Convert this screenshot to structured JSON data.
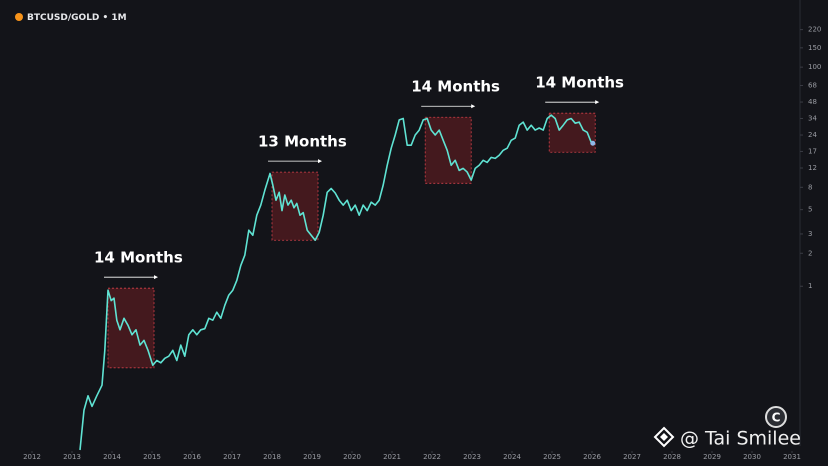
{
  "chart_data": {
    "type": "line",
    "title": "BTCUSD/GOLD • 1M",
    "watermark": "@ Tai Smilee",
    "log_y": true,
    "grid": false,
    "color": "#5fe3d3",
    "axis_side": "right",
    "xlim": [
      2011.2,
      2031.2
    ],
    "ylim": [
      0.032,
      410
    ],
    "xticks": [
      2012,
      2013,
      2014,
      2015,
      2016,
      2017,
      2018,
      2019,
      2020,
      2021,
      2022,
      2023,
      2024,
      2025,
      2026,
      2027,
      2028,
      2029,
      2030,
      2031
    ],
    "yticks": [
      220,
      150,
      100,
      68,
      48,
      34,
      24,
      17,
      12,
      8,
      5,
      3,
      2,
      1
    ],
    "x": [
      2013.2,
      2013.3,
      2013.4,
      2013.5,
      2013.62,
      2013.75,
      2013.82,
      2013.9,
      2013.98,
      2014.05,
      2014.12,
      2014.2,
      2014.3,
      2014.4,
      2014.5,
      2014.6,
      2014.7,
      2014.8,
      2014.9,
      2015.02,
      2015.12,
      2015.22,
      2015.32,
      2015.42,
      2015.52,
      2015.62,
      2015.72,
      2015.82,
      2015.92,
      2016.02,
      2016.12,
      2016.22,
      2016.32,
      2016.42,
      2016.52,
      2016.62,
      2016.72,
      2016.82,
      2016.92,
      2017.02,
      2017.12,
      2017.22,
      2017.32,
      2017.42,
      2017.52,
      2017.62,
      2017.72,
      2017.82,
      2017.95,
      2018.02,
      2018.1,
      2018.18,
      2018.25,
      2018.32,
      2018.4,
      2018.48,
      2018.55,
      2018.62,
      2018.7,
      2018.78,
      2018.88,
      2018.98,
      2019.08,
      2019.18,
      2019.28,
      2019.38,
      2019.48,
      2019.58,
      2019.68,
      2019.78,
      2019.88,
      2019.98,
      2020.08,
      2020.18,
      2020.28,
      2020.38,
      2020.48,
      2020.58,
      2020.68,
      2020.78,
      2020.88,
      2020.98,
      2021.08,
      2021.18,
      2021.28,
      2021.38,
      2021.48,
      2021.58,
      2021.68,
      2021.78,
      2021.88,
      2021.98,
      2022.08,
      2022.18,
      2022.28,
      2022.38,
      2022.48,
      2022.58,
      2022.68,
      2022.78,
      2022.88,
      2022.98,
      2023.08,
      2023.18,
      2023.28,
      2023.38,
      2023.48,
      2023.58,
      2023.68,
      2023.78,
      2023.88,
      2023.98,
      2024.08,
      2024.18,
      2024.28,
      2024.38,
      2024.48,
      2024.58,
      2024.68,
      2024.78,
      2024.88,
      2024.98,
      2025.08,
      2025.18,
      2025.28,
      2025.38,
      2025.48,
      2025.58,
      2025.68,
      2025.78,
      2025.88,
      2025.98,
      2026.02
    ],
    "values": [
      0.032,
      0.074,
      0.1,
      0.08,
      0.1,
      0.125,
      0.26,
      0.92,
      0.74,
      0.78,
      0.49,
      0.4,
      0.51,
      0.44,
      0.36,
      0.4,
      0.29,
      0.32,
      0.26,
      0.19,
      0.21,
      0.2,
      0.22,
      0.23,
      0.26,
      0.21,
      0.29,
      0.23,
      0.36,
      0.4,
      0.36,
      0.4,
      0.41,
      0.51,
      0.49,
      0.58,
      0.51,
      0.67,
      0.83,
      0.92,
      1.13,
      1.55,
      1.92,
      3.25,
      2.92,
      4.45,
      5.5,
      7.5,
      10.7,
      8.4,
      6.1,
      7.2,
      4.9,
      6.8,
      5.5,
      6.1,
      5.2,
      5.7,
      4.45,
      4.7,
      3.25,
      2.92,
      2.63,
      3.1,
      4.45,
      7.2,
      7.8,
      7.1,
      6.1,
      5.5,
      6.1,
      4.9,
      5.5,
      4.45,
      5.5,
      4.9,
      5.85,
      5.5,
      6.1,
      8.4,
      12.7,
      18.2,
      24,
      33,
      34,
      19.4,
      19.4,
      24,
      26.6,
      33,
      34,
      26.6,
      24,
      26.6,
      21.5,
      17.4,
      12.7,
      14.1,
      11.4,
      11.9,
      11,
      9.3,
      11.9,
      12.7,
      14.1,
      13.5,
      15,
      14.7,
      15.7,
      17.4,
      18.2,
      21.5,
      22.5,
      29.5,
      31.5,
      26.6,
      29.5,
      26.6,
      27.8,
      26.6,
      34,
      36.5,
      34,
      26.6,
      29.5,
      33,
      34,
      30.8,
      31.5,
      26.6,
      25.4,
      20.6,
      20.2
    ],
    "annotations": [
      {
        "text": "14 Months",
        "x": [
          2013.9,
          2015.05
        ],
        "y": [
          0.18,
          0.96
        ]
      },
      {
        "text": "13 Months",
        "x": [
          2018.0,
          2019.15
        ],
        "y": [
          2.63,
          11
        ]
      },
      {
        "text": "14 Months",
        "x": [
          2021.83,
          2022.98
        ],
        "y": [
          8.7,
          34.9
        ]
      },
      {
        "text": "14 Months",
        "x": [
          2024.93,
          2026.08
        ],
        "y": [
          16.7,
          38
        ]
      }
    ]
  }
}
